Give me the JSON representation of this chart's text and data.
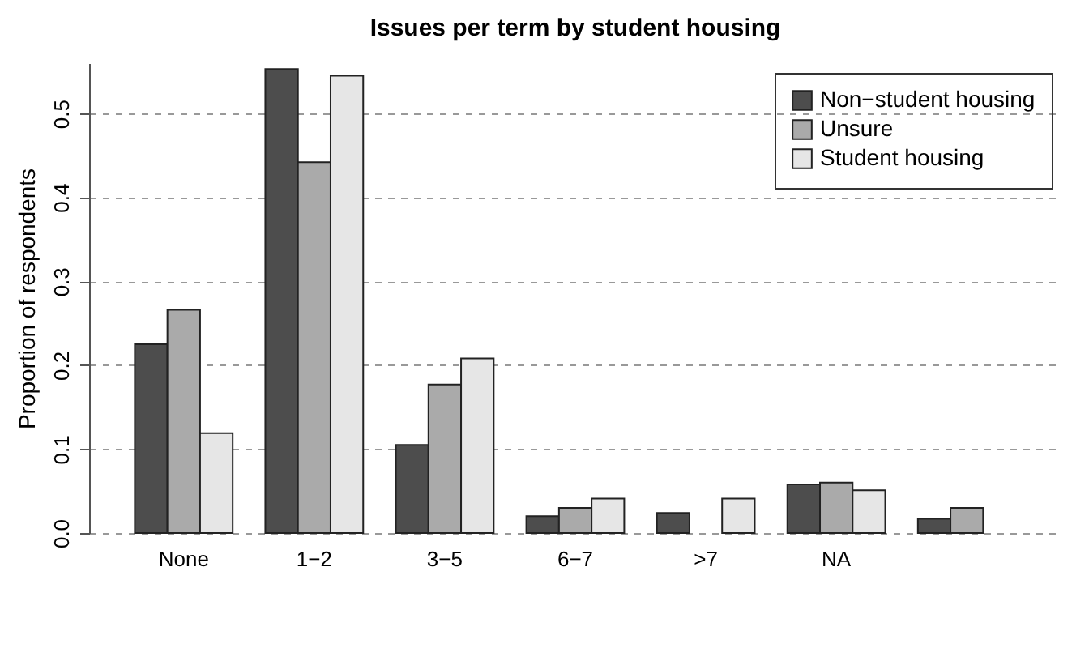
{
  "chart_data": {
    "type": "bar",
    "title": "Issues per term by student housing",
    "ylabel": "Proportion of respondents",
    "categories": [
      "None",
      "1−2",
      "3−5",
      "6−7",
      ">7",
      "NA",
      null
    ],
    "series": [
      {
        "name": "Non−student housing",
        "color": "#4d4d4d",
        "values": [
          0.225,
          0.553,
          0.105,
          0.02,
          0.024,
          0.058,
          0.017
        ]
      },
      {
        "name": "Unsure",
        "color": "#aaaaaa",
        "values": [
          0.266,
          0.442,
          0.177,
          0.03,
          0,
          0.06,
          0.03
        ]
      },
      {
        "name": "Student housing",
        "color": "#e6e6e6",
        "values": [
          0.119,
          0.545,
          0.208,
          0.041,
          0.041,
          0.051,
          0
        ]
      }
    ],
    "ylim": [
      0,
      0.56
    ],
    "yticks": [
      {
        "value": 0,
        "label": "0.0"
      },
      0.1,
      0.2,
      0.3,
      0.4,
      0.5
    ],
    "grid": "y",
    "legend": "top right"
  }
}
